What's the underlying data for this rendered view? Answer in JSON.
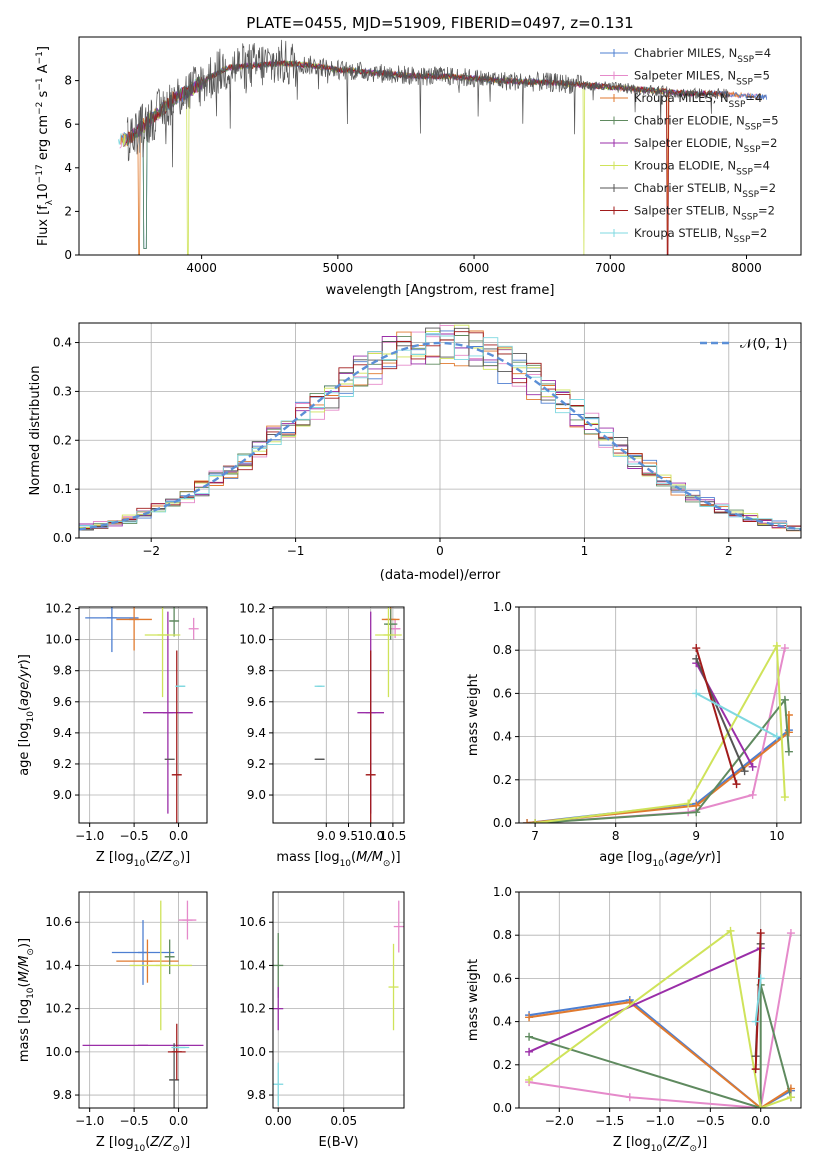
{
  "figure_title": "PLATE=0455, MJD=51909, FIBERID=0497, z=0.131",
  "colors": {
    "Chabrier MILES": "#4e7fd1",
    "Salpeter MILES": "#e58aca",
    "Kroupa MILES": "#e07a2f",
    "Chabrier ELODIE": "#5f8a5f",
    "Salpeter ELODIE": "#9a2ea8",
    "Kroupa ELODIE": "#cfe35a",
    "Chabrier STELIB": "#555555",
    "Salpeter STELIB": "#a11b1b",
    "Kroupa STELIB": "#7fd8e0"
  },
  "chart_data": [
    {
      "id": "spectrum",
      "type": "line",
      "xlabel": "wavelength [Angstrom, rest frame]",
      "xlim": [
        3100,
        8400
      ],
      "ylim": [
        0,
        10
      ],
      "xticks": [
        4000,
        5000,
        6000,
        7000,
        8000
      ],
      "yticks": [
        0,
        2,
        4,
        6,
        8
      ],
      "ylabel": {
        "pre": "Flux [f",
        "sub1": "λ",
        "mid": "10",
        "sup1": "−17",
        "post": " erg cm",
        "sup2": "−2",
        "post2": " s",
        "sup3": "−1",
        "post3": " A",
        "sup4": "−1",
        "end": "]"
      },
      "legend": [
        {
          "model": "Chabrier MILES",
          "n": "4"
        },
        {
          "model": "Salpeter MILES",
          "n": "5"
        },
        {
          "model": "Kroupa MILES",
          "n": "4"
        },
        {
          "model": "Chabrier ELODIE",
          "n": "5"
        },
        {
          "model": "Salpeter ELODIE",
          "n": "2"
        },
        {
          "model": "Kroupa ELODIE",
          "n": "4"
        },
        {
          "model": "Chabrier STELIB",
          "n": "2"
        },
        {
          "model": "Salpeter STELIB",
          "n": "2"
        },
        {
          "model": "Kroupa STELIB",
          "n": "2"
        }
      ],
      "continuum": [
        [
          3400,
          5.2
        ],
        [
          3500,
          5.5
        ],
        [
          3600,
          6.1
        ],
        [
          3700,
          6.6
        ],
        [
          3800,
          7.2
        ],
        [
          3900,
          7.5
        ],
        [
          4000,
          7.9
        ],
        [
          4100,
          8.3
        ],
        [
          4200,
          8.6
        ],
        [
          4400,
          8.7
        ],
        [
          4600,
          8.8
        ],
        [
          4800,
          8.7
        ],
        [
          5000,
          8.5
        ],
        [
          5200,
          8.4
        ],
        [
          5400,
          8.3
        ],
        [
          5600,
          8.2
        ],
        [
          5800,
          8.2
        ],
        [
          6000,
          8.1
        ],
        [
          6200,
          8.0
        ],
        [
          6400,
          7.95
        ],
        [
          6600,
          7.9
        ],
        [
          6800,
          7.8
        ],
        [
          7000,
          7.7
        ],
        [
          7200,
          7.6
        ],
        [
          7400,
          7.5
        ],
        [
          7600,
          7.4
        ],
        [
          7800,
          7.4
        ],
        [
          8000,
          7.3
        ],
        [
          8100,
          7.25
        ]
      ],
      "absorption": [
        [
          3580,
          0.6
        ],
        [
          3900,
          0.2
        ],
        [
          6800,
          0.1
        ],
        [
          7420,
          0.4
        ]
      ]
    },
    {
      "id": "residuals",
      "type": "histogram",
      "xlabel": "(data-model)/error",
      "ylabel": "Normed distribution",
      "xlim": [
        -2.5,
        2.5
      ],
      "ylim": [
        0,
        0.44
      ],
      "xticks": [
        -2,
        -1,
        0,
        1,
        2
      ],
      "yticks": [
        0.0,
        0.1,
        0.2,
        0.3,
        0.4
      ],
      "bin_width": 0.1,
      "legend_label": "𝒩(0, 1)",
      "reference": "normal(0,1)"
    },
    {
      "id": "age-vs-Z",
      "type": "errorbar",
      "xlabel": "Z [log10(Z/Z⊙)]",
      "ylabel": "age [log10(age/yr)]",
      "xlim": [
        -1.12,
        0.32
      ],
      "ylim": [
        8.82,
        10.21
      ],
      "xticks": [
        -1.0,
        -0.5,
        0.0
      ],
      "yticks": [
        9.0,
        9.2,
        9.4,
        9.6,
        9.8,
        10.0,
        10.2
      ],
      "points": [
        {
          "series": "Chabrier MILES",
          "x": -0.75,
          "xerr": 0.3,
          "y": 10.14,
          "yerr": 0.22
        },
        {
          "series": "Salpeter MILES",
          "x": 0.17,
          "xerr": 0.0,
          "y": 10.07,
          "yerr": 0.07
        },
        {
          "series": "Kroupa MILES",
          "x": -0.5,
          "xerr": 0.2,
          "y": 10.13,
          "yerr": 0.2
        },
        {
          "series": "Chabrier ELODIE",
          "x": -0.05,
          "xerr": 0.05,
          "y": 10.12,
          "yerr": 0.1
        },
        {
          "series": "Salpeter ELODIE",
          "x": -0.12,
          "xerr": 0.28,
          "y": 9.53,
          "yerr": 0.65
        },
        {
          "series": "Kroupa ELODIE",
          "x": -0.18,
          "xerr": 0.2,
          "y": 10.03,
          "yerr": 0.4
        },
        {
          "series": "Chabrier STELIB",
          "x": -0.1,
          "xerr": 0.0,
          "y": 9.23,
          "yerr": 0.0
        },
        {
          "series": "Salpeter STELIB",
          "x": -0.02,
          "xerr": 0.05,
          "y": 9.13,
          "yerr": 0.8
        },
        {
          "series": "Kroupa STELIB",
          "x": 0.02,
          "xerr": 0.05,
          "y": 9.7,
          "yerr": 0.0
        }
      ]
    },
    {
      "id": "age-vs-mass",
      "type": "errorbar",
      "xlabel": "mass [log10(M/M⊙)]",
      "xlim": [
        7.8,
        10.75
      ],
      "ylim": [
        8.82,
        10.21
      ],
      "xticks": [
        9.0,
        9.5,
        10.0,
        10.5
      ],
      "yticks": [
        9.0,
        9.2,
        9.4,
        9.6,
        9.8,
        10.0,
        10.2
      ],
      "points": [
        {
          "series": "Salpeter MILES",
          "x": 10.55,
          "xerr": 0.12,
          "y": 10.07,
          "yerr": 0.06
        },
        {
          "series": "Kroupa MILES",
          "x": 10.45,
          "xerr": 0.2,
          "y": 10.13,
          "yerr": 0.1
        },
        {
          "series": "Chabrier ELODIE",
          "x": 10.45,
          "xerr": 0.15,
          "y": 10.1,
          "yerr": 0.1
        },
        {
          "series": "Kroupa ELODIE",
          "x": 10.4,
          "xerr": 0.3,
          "y": 10.03,
          "yerr": 0.4
        },
        {
          "series": "Salpeter ELODIE",
          "x": 10.0,
          "xerr": 0.3,
          "y": 9.53,
          "yerr": 0.65
        },
        {
          "series": "Chabrier STELIB",
          "x": 8.85,
          "xerr": 0.1,
          "y": 9.23,
          "yerr": 0.0
        },
        {
          "series": "Salpeter STELIB",
          "x": 10.0,
          "xerr": 0.1,
          "y": 9.13,
          "yerr": 0.8
        },
        {
          "series": "Kroupa STELIB",
          "x": 8.85,
          "xerr": 0.05,
          "y": 9.7,
          "yerr": 0.0
        }
      ]
    },
    {
      "id": "weight-vs-age",
      "type": "line",
      "xlabel": "age [log10(age/yr)]",
      "ylabel": "mass weight",
      "xlim": [
        6.8,
        10.3
      ],
      "ylim": [
        0,
        1.0
      ],
      "xticks": [
        7,
        8,
        9,
        10
      ],
      "yticks": [
        0.0,
        0.2,
        0.4,
        0.6,
        0.8,
        1.0
      ],
      "series": [
        {
          "name": "Chabrier MILES",
          "points": [
            [
              6.9,
              0.0
            ],
            [
              9.0,
              0.09
            ],
            [
              10.15,
              0.43
            ]
          ]
        },
        {
          "name": "Salpeter MILES",
          "points": [
            [
              7.0,
              0.0
            ],
            [
              8.9,
              0.05
            ],
            [
              9.7,
              0.13
            ],
            [
              10.1,
              0.81
            ]
          ]
        },
        {
          "name": "Kroupa MILES",
          "points": [
            [
              6.9,
              0.0
            ],
            [
              9.0,
              0.08
            ],
            [
              10.15,
              0.42
            ],
            [
              10.15,
              0.5
            ]
          ]
        },
        {
          "name": "Chabrier ELODIE",
          "points": [
            [
              7.0,
              0.0
            ],
            [
              9.0,
              0.05
            ],
            [
              10.1,
              0.57
            ],
            [
              10.15,
              0.33
            ]
          ]
        },
        {
          "name": "Salpeter ELODIE",
          "points": [
            [
              9.0,
              0.74
            ],
            [
              9.7,
              0.26
            ]
          ]
        },
        {
          "name": "Kroupa ELODIE",
          "points": [
            [
              7.0,
              0.0
            ],
            [
              8.9,
              0.09
            ],
            [
              10.0,
              0.82
            ],
            [
              10.1,
              0.12
            ]
          ]
        },
        {
          "name": "Chabrier STELIB",
          "points": [
            [
              9.0,
              0.76
            ],
            [
              9.6,
              0.24
            ]
          ]
        },
        {
          "name": "Salpeter STELIB",
          "points": [
            [
              9.0,
              0.81
            ],
            [
              9.5,
              0.18
            ]
          ]
        },
        {
          "name": "Kroupa STELIB",
          "points": [
            [
              9.0,
              0.6
            ],
            [
              10.0,
              0.4
            ]
          ]
        }
      ]
    },
    {
      "id": "mass-vs-Z",
      "type": "errorbar",
      "xlabel": "Z [log10(Z/Z⊙)]",
      "ylabel": "mass [log10(M/M⊙)]",
      "xlim": [
        -1.12,
        0.32
      ],
      "ylim": [
        9.74,
        10.74
      ],
      "xticks": [
        -1.0,
        -0.5,
        0.0
      ],
      "yticks": [
        9.8,
        10.0,
        10.2,
        10.4,
        10.6
      ],
      "points": [
        {
          "series": "Chabrier MILES",
          "x": -0.4,
          "xerr": 0.35,
          "y": 10.46,
          "yerr": 0.15
        },
        {
          "series": "Salpeter MILES",
          "x": 0.1,
          "xerr": 0.1,
          "y": 10.61,
          "yerr": 0.09
        },
        {
          "series": "Kroupa MILES",
          "x": -0.35,
          "xerr": 0.35,
          "y": 10.42,
          "yerr": 0.1
        },
        {
          "series": "Chabrier ELODIE",
          "x": -0.1,
          "xerr": 0.05,
          "y": 10.44,
          "yerr": 0.08
        },
        {
          "series": "Salpeter ELODIE",
          "x": -0.4,
          "xerr": 0.68,
          "y": 10.03,
          "yerr": 0.0
        },
        {
          "series": "Kroupa ELODIE",
          "x": -0.2,
          "xerr": 0.35,
          "y": 10.4,
          "yerr": 0.3
        },
        {
          "series": "Chabrier STELIB",
          "x": -0.05,
          "xerr": 0.05,
          "y": 9.87,
          "yerr": 0.17
        },
        {
          "series": "Salpeter STELIB",
          "x": -0.02,
          "xerr": 0.1,
          "y": 10.0,
          "yerr": 0.13
        },
        {
          "series": "Kroupa STELIB",
          "x": 0.02,
          "xerr": 0.1,
          "y": 10.02,
          "yerr": 0.0
        }
      ]
    },
    {
      "id": "mass-vs-ebv",
      "type": "errorbar",
      "xlabel": "E(B-V)",
      "xlim": [
        -0.004,
        0.096
      ],
      "ylim": [
        9.74,
        10.74
      ],
      "xticks": [
        0.0,
        0.05
      ],
      "yticks": [
        9.8,
        10.0,
        10.2,
        10.4,
        10.6
      ],
      "points": [
        {
          "series": "Chabrier ELODIE",
          "x": 0.0,
          "xerr": 0.0,
          "y": 10.4,
          "yerr": 0.15
        },
        {
          "series": "Salpeter ELODIE",
          "x": 0.0,
          "xerr": 0.0,
          "y": 10.2,
          "yerr": 0.1
        },
        {
          "series": "Kroupa STELIB",
          "x": 0.0,
          "xerr": 0.0,
          "y": 9.85,
          "yerr": 0.1
        },
        {
          "series": "Kroupa ELODIE",
          "x": 0.088,
          "xerr": 0.0,
          "y": 10.3,
          "yerr": 0.2
        },
        {
          "series": "Salpeter MILES",
          "x": 0.092,
          "xerr": 0.0,
          "y": 10.58,
          "yerr": 0.12
        }
      ]
    },
    {
      "id": "weight-vs-Z",
      "type": "line",
      "xlabel": "Z [log10(Z/Z⊙)]",
      "ylabel": "mass weight",
      "xlim": [
        -2.4,
        0.4
      ],
      "ylim": [
        0,
        1.0
      ],
      "xticks": [
        -2.0,
        -1.5,
        -1.0,
        -0.5,
        0.0
      ],
      "yticks": [
        0.0,
        0.2,
        0.4,
        0.6,
        0.8,
        1.0
      ],
      "series": [
        {
          "name": "Chabrier MILES",
          "points": [
            [
              -2.3,
              0.43
            ],
            [
              -1.3,
              0.5
            ],
            [
              0.0,
              0.0
            ],
            [
              0.3,
              0.08
            ]
          ]
        },
        {
          "name": "Salpeter MILES",
          "points": [
            [
              -2.3,
              0.12
            ],
            [
              -1.3,
              0.05
            ],
            [
              0.0,
              0.0
            ],
            [
              0.3,
              0.81
            ]
          ]
        },
        {
          "name": "Kroupa MILES",
          "points": [
            [
              -2.3,
              0.42
            ],
            [
              -1.3,
              0.49
            ],
            [
              0.0,
              0.0
            ],
            [
              0.3,
              0.09
            ]
          ]
        },
        {
          "name": "Chabrier ELODIE",
          "points": [
            [
              -2.3,
              0.33
            ],
            [
              0.0,
              0.0
            ],
            [
              0.0,
              0.57
            ],
            [
              0.3,
              0.05
            ]
          ]
        },
        {
          "name": "Salpeter ELODIE",
          "points": [
            [
              -2.3,
              0.26
            ],
            [
              0.0,
              0.74
            ]
          ]
        },
        {
          "name": "Kroupa ELODIE",
          "points": [
            [
              -2.3,
              0.13
            ],
            [
              -0.3,
              0.82
            ],
            [
              0.0,
              0.0
            ],
            [
              0.3,
              0.05
            ]
          ]
        },
        {
          "name": "Chabrier STELIB",
          "points": [
            [
              -0.05,
              0.24
            ],
            [
              0.0,
              0.76
            ]
          ]
        },
        {
          "name": "Salpeter STELIB",
          "points": [
            [
              -0.05,
              0.18
            ],
            [
              0.0,
              0.81
            ]
          ]
        },
        {
          "name": "Kroupa STELIB",
          "points": [
            [
              -0.05,
              0.4
            ],
            [
              0.0,
              0.6
            ]
          ]
        }
      ]
    }
  ]
}
